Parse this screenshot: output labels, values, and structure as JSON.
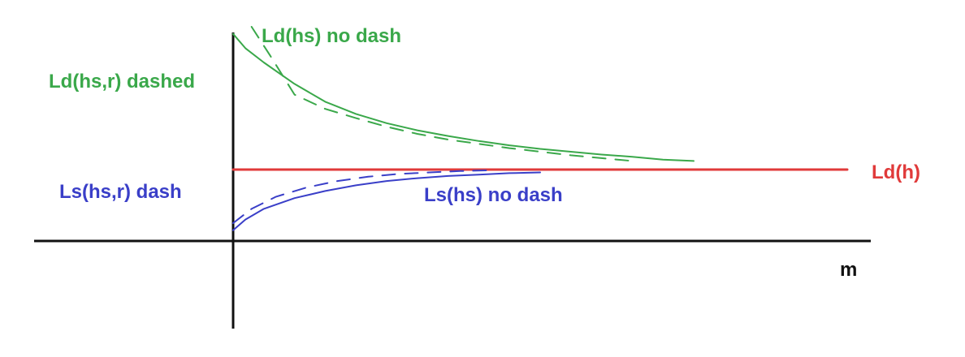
{
  "chart_data": {
    "type": "line",
    "title": "",
    "xlabel": "m",
    "ylabel": "",
    "grid": false,
    "legend": "none",
    "colors": {
      "green": "#3aa84a",
      "red": "#e03a3a",
      "blue": "#3a3fc8",
      "axis": "#111111"
    },
    "x": [
      0,
      0.2,
      0.5,
      1,
      1.5,
      2,
      2.5,
      3,
      3.5,
      4,
      4.5,
      5,
      5.5,
      6,
      6.5,
      7,
      7.5,
      8,
      8.5,
      9,
      9.5,
      10
    ],
    "series": [
      {
        "name": "Ld(hs) no dash",
        "color": "#3aa84a",
        "dashed": false,
        "x": [
          0,
          0.2,
          0.5,
          1,
          1.5,
          2,
          2.5,
          3,
          3.5,
          4,
          4.5,
          5,
          5.5,
          6,
          6.5,
          7,
          7.5
        ],
        "values": [
          2.9,
          2.7,
          2.5,
          2.2,
          1.95,
          1.78,
          1.65,
          1.55,
          1.47,
          1.4,
          1.34,
          1.29,
          1.25,
          1.21,
          1.18,
          1.14,
          1.12
        ]
      },
      {
        "name": "Ld(hs,r) dashed",
        "color": "#3aa84a",
        "dashed": true,
        "x": [
          0.3,
          0.6,
          1,
          1.5,
          2,
          2.5,
          3,
          3.5,
          4,
          4.5,
          5,
          5.5,
          6,
          6.5
        ],
        "values": [
          3.0,
          2.6,
          2.05,
          1.85,
          1.72,
          1.6,
          1.5,
          1.42,
          1.36,
          1.3,
          1.25,
          1.2,
          1.16,
          1.12
        ]
      },
      {
        "name": "Ld(h)",
        "color": "#e03a3a",
        "dashed": false,
        "x": [
          0,
          10
        ],
        "values": [
          1.0,
          1.0
        ]
      },
      {
        "name": "Ls(hs) no dash",
        "color": "#3a3fc8",
        "dashed": false,
        "x": [
          0,
          0.2,
          0.5,
          1,
          1.5,
          2,
          2.5,
          3,
          3.5,
          4,
          4.5,
          5
        ],
        "values": [
          0.15,
          0.3,
          0.45,
          0.6,
          0.7,
          0.78,
          0.84,
          0.88,
          0.91,
          0.93,
          0.95,
          0.96
        ]
      },
      {
        "name": "Ls(hs,r) dash",
        "color": "#3a3fc8",
        "dashed": true,
        "x": [
          0,
          0.3,
          0.7,
          1.2,
          1.7,
          2.2,
          2.7,
          3.2,
          3.7,
          4.2
        ],
        "values": [
          0.25,
          0.45,
          0.62,
          0.75,
          0.84,
          0.9,
          0.94,
          0.96,
          0.98,
          0.99
        ]
      }
    ],
    "xlim": [
      -3,
      10
    ],
    "ylim": [
      -1.1,
      3.3
    ],
    "labels": {
      "ld_hs": "Ld(hs) no dash",
      "ld_hs_r": "Ld(hs,r) dashed",
      "ld_h": "Ld(h)",
      "ls_hs_r": "Ls(hs,r) dash",
      "ls_hs": "Ls(hs) no dash",
      "x_axis": "m"
    }
  }
}
